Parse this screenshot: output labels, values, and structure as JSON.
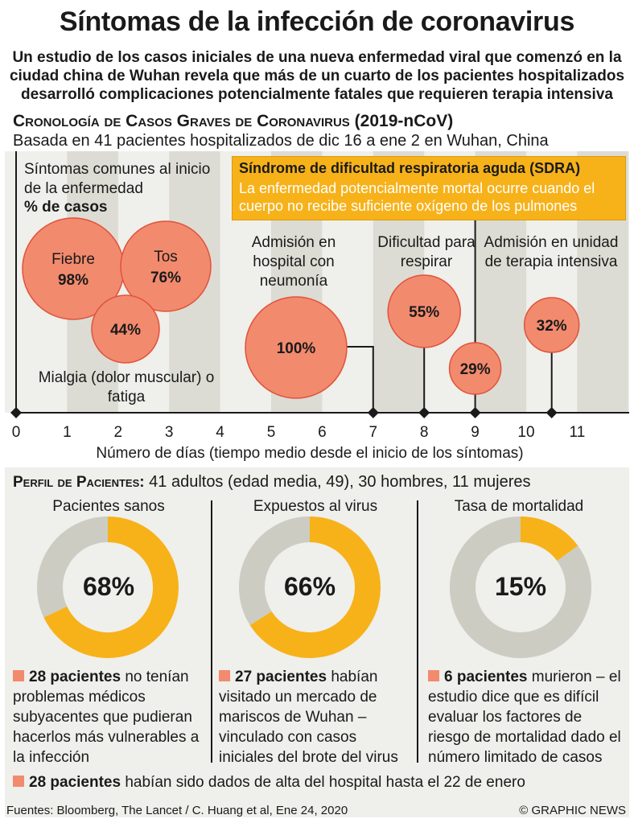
{
  "title": "Síntomas de la infección de coronavirus",
  "subtitle": "Un estudio de los casos iniciales de una nueva enfermedad viral que comenzó en la ciudad china de Wuhan revela que más de un cuarto de los pacientes hospitalizados desarrolló complicaciones potencialmente fatales que requieren terapia intensiva",
  "timeline_section": {
    "title_main": "Cronología de Casos Graves de Coronavirus",
    "title_tag": "(2019-nCoV)",
    "subtitle": "Basada en 41 pacientes hospitalizados de dic 16 a ene 2 en Wuhan, China"
  },
  "sdra": {
    "title": "Síndrome de dificultad respiratoria aguda (SDRA)",
    "desc": "La enfermedad potencialmente mortal ocurre cuando el cuerpo no recibe suficiente oxígeno de los pulmones"
  },
  "labels": {
    "symptoms_header": "Síntomas comunes al inicio de la enfermedad",
    "symptoms_unit": "% de casos",
    "mialgia": "Mialgia (dolor muscular) o fatiga",
    "admision": "Admisión en hospital con neumonía",
    "dificultad": "Dificultad para respirar",
    "uci": "Admisión en unidad de terapia intensiva",
    "x_axis": "Número de días (tiempo medio desde el inicio de los síntomas)"
  },
  "chart_data": [
    {
      "type": "bubble-timeline",
      "x_ticks": [
        0,
        1,
        2,
        3,
        4,
        5,
        6,
        7,
        8,
        9,
        10,
        11
      ],
      "xlabel": "Número de días (tiempo medio desde el inicio de los síntomas)",
      "series": [
        {
          "name": "Fiebre",
          "value": 98,
          "label": "98%"
        },
        {
          "name": "Tos",
          "value": 76,
          "label": "76%"
        },
        {
          "name": "Mialgia (dolor muscular) o fatiga",
          "value": 44,
          "label": "44%"
        },
        {
          "name": "Admisión en hospital con neumonía",
          "day": 7,
          "value": 100,
          "label": "100%"
        },
        {
          "name": "Dificultad para respirar",
          "day": 8,
          "value": 55,
          "label": "55%"
        },
        {
          "name": "Síndrome de dificultad respiratoria aguda (SDRA)",
          "day": 9,
          "value": 29,
          "label": "29%"
        },
        {
          "name": "Admisión en unidad de terapia intensiva",
          "day": 10.5,
          "value": 32,
          "label": "32%"
        }
      ],
      "colors": {
        "bubble": "#f28a6e",
        "bubble_edge": "#e0533a",
        "band_dark": "#dcdcd4",
        "band_light": "#efefeb"
      }
    },
    {
      "type": "pie",
      "title": "Pacientes sanos",
      "values": [
        68,
        32
      ],
      "label": "68%"
    },
    {
      "type": "pie",
      "title": "Expuestos al virus",
      "values": [
        66,
        34
      ],
      "label": "66%"
    },
    {
      "type": "pie",
      "title": "Tasa de mortalidad",
      "values": [
        15,
        85
      ],
      "label": "15%"
    }
  ],
  "profile": {
    "title": "Perfil de Pacientes:",
    "summary": "41 adultos (edad media, 49), 30 hombres, 11 mujeres",
    "cols": [
      {
        "header": "Pacientes sanos",
        "pct": "68%",
        "bold": "28 pacientes",
        "text": " no tenían problemas médicos subyacentes que pudieran hacerlos más vulnerables a la infección"
      },
      {
        "header": "Expuestos al virus",
        "pct": "66%",
        "bold": "27 pacientes",
        "text": " habían visitado un mercado de mariscos de Wuhan – vinculado con casos iniciales del brote del virus"
      },
      {
        "header": "Tasa de mortalidad",
        "pct": "15%",
        "bold": "6 pacientes",
        "text": " murieron – el estudio dice que es difícil evaluar los factores de riesgo de mortalidad dado el número limitado de casos"
      }
    ],
    "discharge_bold": "28 pacientes",
    "discharge_text": " habían sido dados de alta del hospital hasta el 22 de enero"
  },
  "colors": {
    "accent": "#f7b21a",
    "donut_gray": "#ccccc2",
    "bubble": "#f28a6e"
  },
  "source": "Fuentes: Bloomberg, The Lancet / C. Huang et al, Ene 24, 2020",
  "credit": "© GRAPHIC NEWS"
}
